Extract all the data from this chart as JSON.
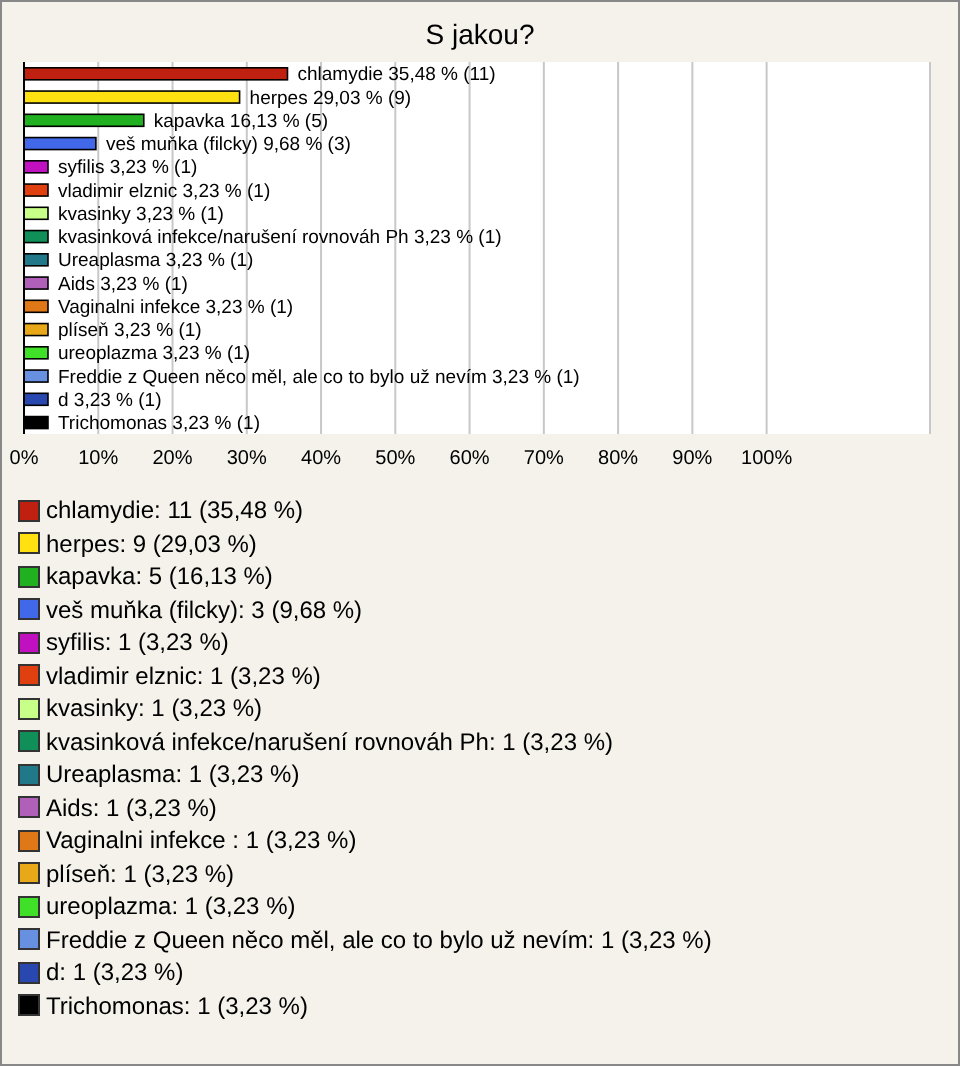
{
  "chart_data": {
    "type": "bar",
    "orientation": "horizontal",
    "stacked": true,
    "title": "S jakou?",
    "categories": [
      null,
      null,
      null,
      null,
      null,
      null,
      null,
      null,
      null,
      null,
      null,
      null,
      null,
      null,
      null,
      null
    ],
    "series": [
      {
        "name": "chlamydie: 11 (35,48 %)",
        "color": "#c02010",
        "values": [
          35.48,
          null,
          null,
          null,
          null,
          null,
          null,
          null,
          null,
          null,
          null,
          null,
          null,
          null,
          null,
          null
        ],
        "value_labels": [
          "chlamydie 35,48 % (11)",
          null,
          null,
          null,
          null,
          null,
          null,
          null,
          null,
          null,
          null,
          null,
          null,
          null,
          null,
          null
        ]
      },
      {
        "name": "herpes: 9 (29,03 %)",
        "color": "#ffe010",
        "values": [
          null,
          29.03,
          null,
          null,
          null,
          null,
          null,
          null,
          null,
          null,
          null,
          null,
          null,
          null,
          null,
          null
        ],
        "value_labels": [
          null,
          "herpes 29,03 % (9)",
          null,
          null,
          null,
          null,
          null,
          null,
          null,
          null,
          null,
          null,
          null,
          null,
          null,
          null
        ]
      },
      {
        "name": "kapavka: 5 (16,13 %)",
        "color": "#20b020",
        "values": [
          null,
          null,
          16.13,
          null,
          null,
          null,
          null,
          null,
          null,
          null,
          null,
          null,
          null,
          null,
          null,
          null
        ],
        "value_labels": [
          null,
          null,
          "kapavka 16,13 % (5)",
          null,
          null,
          null,
          null,
          null,
          null,
          null,
          null,
          null,
          null,
          null,
          null,
          null
        ]
      },
      {
        "name": "veš muňka (filcky): 3 (9,68 %)",
        "color": "#4068e8",
        "values": [
          null,
          null,
          null,
          9.68,
          null,
          null,
          null,
          null,
          null,
          null,
          null,
          null,
          null,
          null,
          null,
          null
        ],
        "value_labels": [
          null,
          null,
          null,
          "veš muňka (filcky) 9,68 % (3)",
          null,
          null,
          null,
          null,
          null,
          null,
          null,
          null,
          null,
          null,
          null,
          null
        ]
      },
      {
        "name": "syfilis: 1 (3,23 %)",
        "color": "#c010c0",
        "values": [
          null,
          null,
          null,
          null,
          3.23,
          null,
          null,
          null,
          null,
          null,
          null,
          null,
          null,
          null,
          null,
          null
        ],
        "value_labels": [
          null,
          null,
          null,
          null,
          "syfilis 3,23 % (1)",
          null,
          null,
          null,
          null,
          null,
          null,
          null,
          null,
          null,
          null,
          null
        ]
      },
      {
        "name": "vladimir elznic: 1 (3,23 %)",
        "color": "#e04010",
        "values": [
          null,
          null,
          null,
          null,
          null,
          3.23,
          null,
          null,
          null,
          null,
          null,
          null,
          null,
          null,
          null,
          null
        ],
        "value_labels": [
          null,
          null,
          null,
          null,
          null,
          "vladimir elznic 3,23 % (1)",
          null,
          null,
          null,
          null,
          null,
          null,
          null,
          null,
          null,
          null
        ]
      },
      {
        "name": "kvasinky: 1 (3,23 %)",
        "color": "#c8ff88",
        "values": [
          null,
          null,
          null,
          null,
          null,
          null,
          3.23,
          null,
          null,
          null,
          null,
          null,
          null,
          null,
          null,
          null
        ],
        "value_labels": [
          null,
          null,
          null,
          null,
          null,
          null,
          "kvasinky 3,23 % (1)",
          null,
          null,
          null,
          null,
          null,
          null,
          null,
          null,
          null
        ]
      },
      {
        "name": "kvasinková infekce/narušení rovnováh Ph: 1 (3,23 %)",
        "color": "#109058",
        "values": [
          null,
          null,
          null,
          null,
          null,
          null,
          null,
          3.23,
          null,
          null,
          null,
          null,
          null,
          null,
          null,
          null
        ],
        "value_labels": [
          null,
          null,
          null,
          null,
          null,
          null,
          null,
          "kvasinková infekce/narušení rovnováh Ph 3,23 % (1)",
          null,
          null,
          null,
          null,
          null,
          null,
          null,
          null
        ]
      },
      {
        "name": "Ureaplasma: 1 (3,23 %)",
        "color": "#207888",
        "values": [
          null,
          null,
          null,
          null,
          null,
          null,
          null,
          null,
          3.23,
          null,
          null,
          null,
          null,
          null,
          null,
          null
        ],
        "value_labels": [
          null,
          null,
          null,
          null,
          null,
          null,
          null,
          null,
          "Ureaplasma 3,23 % (1)",
          null,
          null,
          null,
          null,
          null,
          null,
          null
        ]
      },
      {
        "name": "Aids: 1 (3,23 %)",
        "color": "#b060b8",
        "values": [
          null,
          null,
          null,
          null,
          null,
          null,
          null,
          null,
          null,
          3.23,
          null,
          null,
          null,
          null,
          null,
          null
        ],
        "value_labels": [
          null,
          null,
          null,
          null,
          null,
          null,
          null,
          null,
          null,
          "Aids 3,23 % (1)",
          null,
          null,
          null,
          null,
          null,
          null
        ]
      },
      {
        "name": "Vaginalni infekce : 1 (3,23 %)",
        "color": "#e07818",
        "values": [
          null,
          null,
          null,
          null,
          null,
          null,
          null,
          null,
          null,
          null,
          3.23,
          null,
          null,
          null,
          null,
          null
        ],
        "value_labels": [
          null,
          null,
          null,
          null,
          null,
          null,
          null,
          null,
          null,
          null,
          "Vaginalni infekce  3,23 % (1)",
          null,
          null,
          null,
          null,
          null
        ]
      },
      {
        "name": "plíseň: 1 (3,23 %)",
        "color": "#e8a818",
        "values": [
          null,
          null,
          null,
          null,
          null,
          null,
          null,
          null,
          null,
          null,
          null,
          3.23,
          null,
          null,
          null,
          null
        ],
        "value_labels": [
          null,
          null,
          null,
          null,
          null,
          null,
          null,
          null,
          null,
          null,
          null,
          "plíseň 3,23 % (1)",
          null,
          null,
          null,
          null
        ]
      },
      {
        "name": "ureoplazma: 1 (3,23 %)",
        "color": "#40e028",
        "values": [
          null,
          null,
          null,
          null,
          null,
          null,
          null,
          null,
          null,
          null,
          null,
          null,
          3.23,
          null,
          null,
          null
        ],
        "value_labels": [
          null,
          null,
          null,
          null,
          null,
          null,
          null,
          null,
          null,
          null,
          null,
          null,
          "ureoplazma 3,23 % (1)",
          null,
          null,
          null
        ]
      },
      {
        "name": "Freddie z Queen něco měl, ale co to bylo už nevím: 1 (3,23 %)",
        "color": "#6890e0",
        "values": [
          null,
          null,
          null,
          null,
          null,
          null,
          null,
          null,
          null,
          null,
          null,
          null,
          null,
          3.23,
          null,
          null
        ],
        "value_labels": [
          null,
          null,
          null,
          null,
          null,
          null,
          null,
          null,
          null,
          null,
          null,
          null,
          null,
          "Freddie z Queen něco měl, ale co to bylo už nevím 3,23 % (1)",
          null,
          null
        ]
      },
      {
        "name": "d: 1 (3,23 %)",
        "color": "#2848b0",
        "values": [
          null,
          null,
          null,
          null,
          null,
          null,
          null,
          null,
          null,
          null,
          null,
          null,
          null,
          null,
          3.23,
          null
        ],
        "value_labels": [
          null,
          null,
          null,
          null,
          null,
          null,
          null,
          null,
          null,
          null,
          null,
          null,
          null,
          null,
          "d 3,23 % (1)",
          null
        ]
      },
      {
        "name": "Trichomonas: 1 (3,23 %)",
        "color": "#000000",
        "values": [
          null,
          null,
          null,
          null,
          null,
          null,
          null,
          null,
          null,
          null,
          null,
          null,
          null,
          null,
          null,
          3.23
        ],
        "value_labels": [
          null,
          null,
          null,
          null,
          null,
          null,
          null,
          null,
          null,
          null,
          null,
          null,
          null,
          null,
          null,
          "Trichomonas 3,23 % (1)"
        ]
      }
    ],
    "xlim": [
      0,
      122
    ],
    "xticks": [
      {
        "value": 0,
        "label": "0%"
      },
      {
        "value": 10,
        "label": "10%"
      },
      {
        "value": 20,
        "label": "20%"
      },
      {
        "value": 30,
        "label": "30%"
      },
      {
        "value": 40,
        "label": "40%"
      },
      {
        "value": 50,
        "label": "50%"
      },
      {
        "value": 60,
        "label": "60%"
      },
      {
        "value": 70,
        "label": "70%"
      },
      {
        "value": 80,
        "label": "80%"
      },
      {
        "value": 90,
        "label": "90%"
      },
      {
        "value": 100,
        "label": "100%"
      }
    ],
    "grid": "x",
    "legend": "bottom"
  }
}
